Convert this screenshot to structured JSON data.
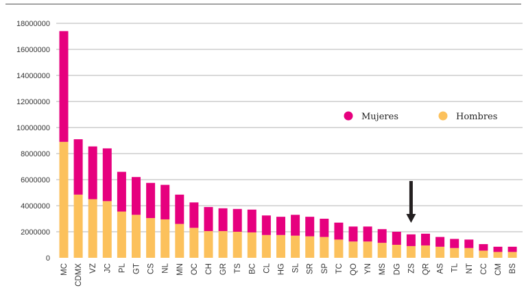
{
  "chart_data": {
    "type": "bar",
    "stacked": true,
    "title": "",
    "xlabel": "",
    "ylabel": "",
    "ylim": [
      0,
      18000000
    ],
    "yticks": [
      "0",
      "2000000",
      "4000000",
      "6000000",
      "8000000",
      "10000000",
      "12000000",
      "14000000",
      "16000000",
      "18000000"
    ],
    "grid": true,
    "legend_position": "right",
    "categories": [
      "MC",
      "CDMX",
      "VZ",
      "JC",
      "PL",
      "GT",
      "CS",
      "NL",
      "MN",
      "OC",
      "CH",
      "GR",
      "TS",
      "BC",
      "CL",
      "HG",
      "SL",
      "SR",
      "SP",
      "TC",
      "QO",
      "YN",
      "MS",
      "DG",
      "ZS",
      "QR",
      "AS",
      "TL",
      "NT",
      "CC",
      "CM",
      "BS"
    ],
    "series": [
      {
        "name": "Hombres",
        "color": "#FCC15C",
        "values": [
          8900000,
          4850000,
          4500000,
          4350000,
          3550000,
          3300000,
          3050000,
          2950000,
          2600000,
          2300000,
          2050000,
          2050000,
          2000000,
          1950000,
          1750000,
          1750000,
          1700000,
          1650000,
          1600000,
          1400000,
          1250000,
          1250000,
          1150000,
          1000000,
          900000,
          950000,
          850000,
          750000,
          750000,
          550000,
          450000,
          450000
        ]
      },
      {
        "name": "Mujeres",
        "color": "#E6007E",
        "values": [
          8500000,
          4250000,
          4050000,
          4050000,
          3050000,
          2900000,
          2700000,
          2650000,
          2250000,
          1950000,
          1850000,
          1750000,
          1750000,
          1750000,
          1500000,
          1400000,
          1600000,
          1500000,
          1400000,
          1300000,
          1150000,
          1150000,
          1050000,
          1000000,
          900000,
          900000,
          750000,
          700000,
          650000,
          500000,
          400000,
          400000
        ]
      }
    ],
    "annotation": {
      "type": "arrow-down",
      "category": "ZS",
      "color": "#231f20"
    }
  }
}
